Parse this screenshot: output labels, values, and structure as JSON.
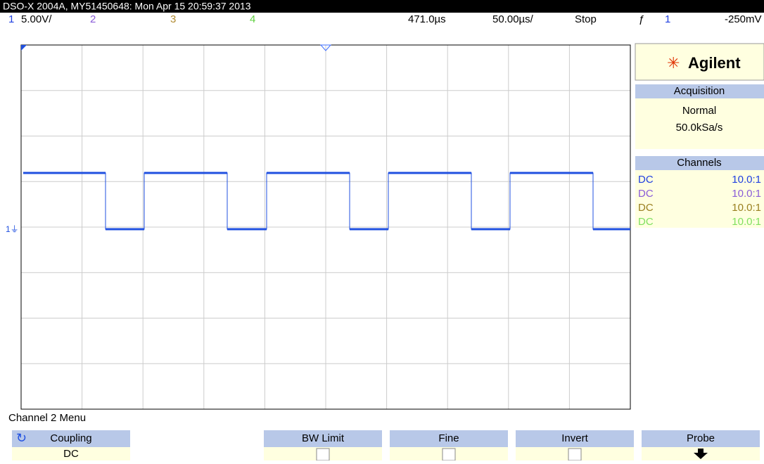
{
  "header": {
    "title": "DSO-X 2004A, MY51450648: Mon Apr 15 20:59:37 2013"
  },
  "status": {
    "ch1": "1",
    "ch1_scale": "5.00V/",
    "ch2": "2",
    "ch3": "3",
    "ch4": "4",
    "delay": "471.0µs",
    "timebase": "50.00µs/",
    "run_state": "Stop",
    "trigger_source": "1",
    "trigger_level": "-250mV"
  },
  "panel": {
    "brand": "Agilent",
    "acquisition": {
      "title": "Acquisition",
      "mode": "Normal",
      "rate": "50.0kSa/s"
    },
    "channels": {
      "title": "Channels",
      "rows": [
        {
          "coupling": "DC",
          "probe": "10.0:1"
        },
        {
          "coupling": "DC",
          "probe": "10.0:1"
        },
        {
          "coupling": "DC",
          "probe": "10.0:1"
        },
        {
          "coupling": "DC",
          "probe": "10.0:1"
        }
      ]
    }
  },
  "menu": {
    "title": "Channel 2 Menu",
    "softkeys": [
      {
        "label": "Coupling",
        "value": "DC"
      },
      {
        "label": "BW Limit"
      },
      {
        "label": "Fine"
      },
      {
        "label": "Invert"
      },
      {
        "label": "Probe"
      }
    ]
  }
}
